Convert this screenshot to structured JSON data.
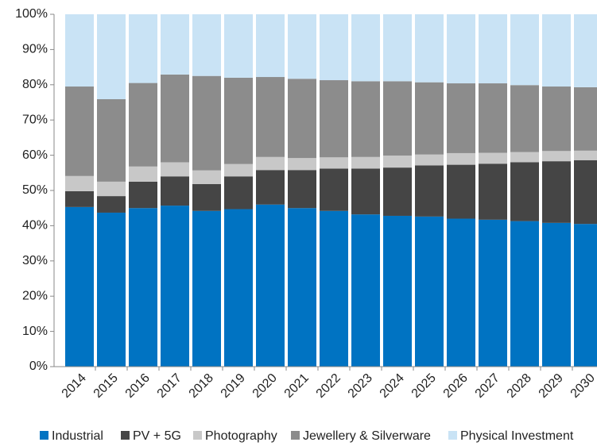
{
  "chart_data": {
    "type": "stacked_bar",
    "categories": [
      "2014",
      "2015",
      "2016",
      "2017",
      "2018",
      "2019",
      "2020",
      "2021",
      "2022",
      "2023",
      "2024",
      "2025",
      "2026",
      "2027",
      "2028",
      "2029",
      "2030"
    ],
    "series": [
      {
        "name": "Industrial",
        "color": "#0073c2",
        "values": [
          45.3,
          43.7,
          45.0,
          45.7,
          44.2,
          44.7,
          46.0,
          45.0,
          44.2,
          43.2,
          42.8,
          42.6,
          42.0,
          41.7,
          41.3,
          40.8,
          40.5
        ]
      },
      {
        "name": "PV + 5G",
        "color": "#454545",
        "values": [
          4.5,
          4.7,
          7.5,
          8.3,
          7.6,
          9.3,
          9.8,
          10.8,
          12.0,
          13.0,
          13.7,
          14.5,
          15.3,
          15.9,
          16.7,
          17.5,
          18.1
        ]
      },
      {
        "name": "Photography",
        "color": "#c8c8c8",
        "values": [
          4.3,
          4.1,
          4.3,
          4.0,
          3.9,
          3.5,
          3.7,
          3.4,
          3.2,
          3.3,
          3.4,
          3.1,
          3.3,
          3.1,
          2.9,
          2.9,
          2.7
        ]
      },
      {
        "name": "Jewellery & Silverware",
        "color": "#8c8c8c",
        "values": [
          25.4,
          23.4,
          23.7,
          24.9,
          26.8,
          24.5,
          22.7,
          22.5,
          21.9,
          21.5,
          21.1,
          20.5,
          19.8,
          19.7,
          19.0,
          18.3,
          18.0
        ]
      },
      {
        "name": "Physical Investment",
        "color": "#c9e3f5",
        "values": [
          20.5,
          24.1,
          19.5,
          17.1,
          17.5,
          18.0,
          17.8,
          18.3,
          18.7,
          19.0,
          19.0,
          19.3,
          19.6,
          19.6,
          20.1,
          20.5,
          20.7
        ]
      }
    ],
    "ylim": [
      0,
      100
    ],
    "yticks": [
      {
        "value": 0,
        "label": "0%"
      },
      {
        "value": 10,
        "label": "10%"
      },
      {
        "value": 20,
        "label": "20%"
      },
      {
        "value": 30,
        "label": "30%"
      },
      {
        "value": 40,
        "label": "40%"
      },
      {
        "value": 50,
        "label": "50%"
      },
      {
        "value": 60,
        "label": "60%"
      },
      {
        "value": 70,
        "label": "70%"
      },
      {
        "value": 80,
        "label": "80%"
      },
      {
        "value": 90,
        "label": "90%"
      },
      {
        "value": 100,
        "label": "100%"
      }
    ],
    "legend": "bottom"
  }
}
